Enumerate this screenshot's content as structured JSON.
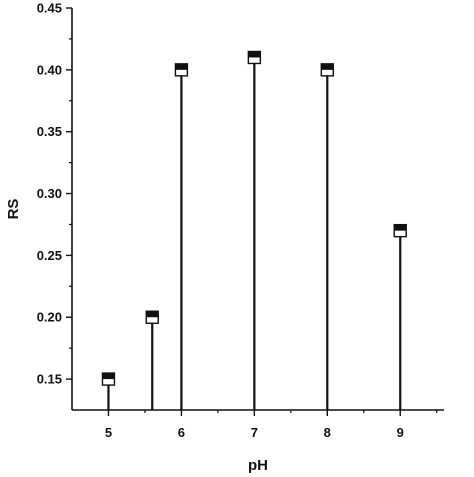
{
  "chart_data": {
    "type": "scatter",
    "style": "drop-line with half-filled square markers",
    "title": "",
    "xlabel": "pH",
    "ylabel": "RS",
    "x": [
      5,
      5.6,
      6,
      7,
      8,
      9
    ],
    "y": [
      0.15,
      0.2,
      0.4,
      0.41,
      0.4,
      0.27
    ],
    "xlim": [
      4.5,
      9.6
    ],
    "ylim": [
      0.125,
      0.45
    ],
    "x_ticks": [
      5,
      6,
      7,
      8,
      9
    ],
    "x_tick_labels": [
      "5",
      "6",
      "7",
      "8",
      "9"
    ],
    "y_ticks": [
      0.15,
      0.2,
      0.25,
      0.3,
      0.35,
      0.4,
      0.45
    ],
    "y_tick_labels": [
      "0.15",
      "0.20",
      "0.25",
      "0.30",
      "0.35",
      "0.40",
      "0.45"
    ],
    "grid": false,
    "legend": "none",
    "colors": {
      "line": "#111111",
      "marker_fill": "#ffffff",
      "marker_top": "#111111"
    }
  }
}
